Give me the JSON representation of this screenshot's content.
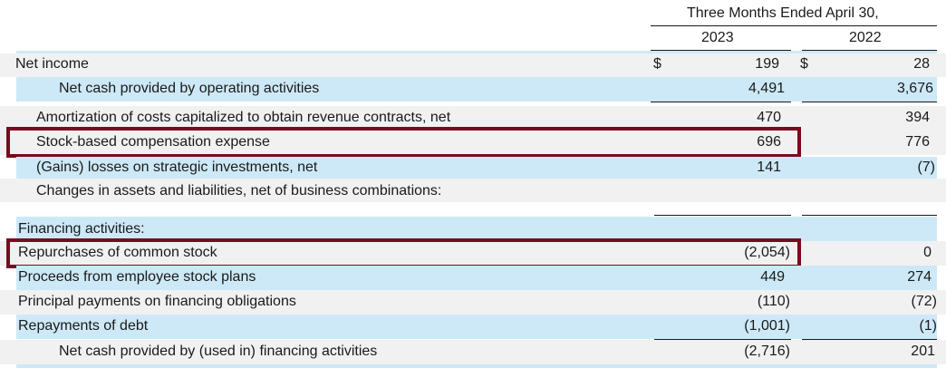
{
  "header": {
    "period": "Three Months Ended April 30,",
    "year1": "2023",
    "year2": "2022"
  },
  "currency": "$",
  "rows": {
    "net_income": {
      "label": "Net income",
      "v2023": "199",
      "v2022": "28"
    },
    "op_cash": {
      "label": "Net cash provided by operating activities",
      "v2023": "4,491",
      "v2022": "3,676"
    },
    "amort": {
      "label": "Amortization of costs capitalized to obtain revenue contracts, net",
      "v2023": "470",
      "v2022": "394"
    },
    "sbc": {
      "label": "Stock-based compensation expense",
      "v2023": "696",
      "v2022": "776"
    },
    "gains": {
      "label": "(Gains) losses on strategic investments, net",
      "v2023": "141",
      "v2022": "(7)"
    },
    "changes": {
      "label": "Changes in assets and liabilities, net of business combinations:"
    },
    "fin_header": {
      "label": "Financing activities:"
    },
    "repurchases": {
      "label": "Repurchases of common stock",
      "v2023": "(2,054)",
      "v2022": "0"
    },
    "proceeds": {
      "label": "Proceeds from employee stock plans",
      "v2023": "449",
      "v2022": "274"
    },
    "principal": {
      "label": "Principal payments on financing obligations",
      "v2023": "(110)",
      "v2022": "(72)"
    },
    "repay_debt": {
      "label": "Repayments of debt",
      "v2023": "(1,001)",
      "v2022": "(1)"
    },
    "fin_cash": {
      "label": "Net cash provided by (used in) financing activities",
      "v2023": "(2,716)",
      "v2022": "201"
    }
  },
  "colors": {
    "band_blue": "#cde9f7",
    "band_grey": "#f1f1f1",
    "highlight_box": "#7a0b1e"
  }
}
